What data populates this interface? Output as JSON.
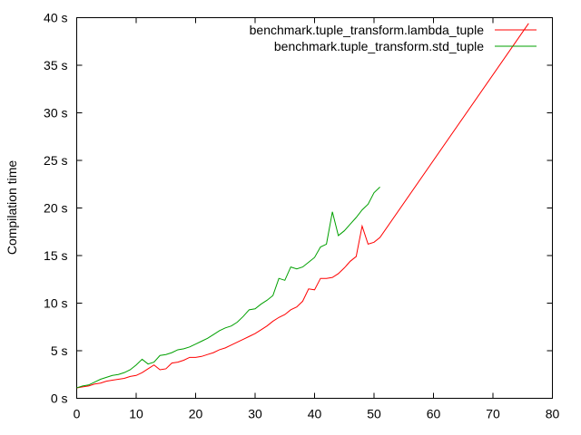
{
  "chart_data": {
    "type": "line",
    "title": "",
    "xlabel": "",
    "ylabel": "Compilation time",
    "xlim": [
      0,
      80
    ],
    "ylim": [
      0,
      40
    ],
    "x_ticks": [
      "0",
      "10",
      "20",
      "30",
      "40",
      "50",
      "60",
      "70",
      "80"
    ],
    "y_ticks": [
      "0 s",
      "5 s",
      "10 s",
      "15 s",
      "20 s",
      "25 s",
      "30 s",
      "35 s",
      "40 s"
    ],
    "grid": false,
    "legend_position": "top-right",
    "series": [
      {
        "name": "benchmark.tuple_transform.lambda_tuple",
        "color": "#ff0000",
        "points": [
          [
            0,
            1.1
          ],
          [
            1,
            1.2
          ],
          [
            2,
            1.3
          ],
          [
            3,
            1.5
          ],
          [
            4,
            1.6
          ],
          [
            5,
            1.8
          ],
          [
            6,
            1.9
          ],
          [
            7,
            2.0
          ],
          [
            8,
            2.1
          ],
          [
            9,
            2.3
          ],
          [
            10,
            2.4
          ],
          [
            11,
            2.7
          ],
          [
            12,
            3.1
          ],
          [
            13,
            3.5
          ],
          [
            14,
            3.0
          ],
          [
            15,
            3.1
          ],
          [
            16,
            3.7
          ],
          [
            17,
            3.8
          ],
          [
            18,
            4.0
          ],
          [
            19,
            4.3
          ],
          [
            20,
            4.3
          ],
          [
            21,
            4.4
          ],
          [
            22,
            4.6
          ],
          [
            23,
            4.8
          ],
          [
            24,
            5.1
          ],
          [
            25,
            5.3
          ],
          [
            26,
            5.6
          ],
          [
            27,
            5.9
          ],
          [
            28,
            6.2
          ],
          [
            29,
            6.5
          ],
          [
            30,
            6.8
          ],
          [
            31,
            7.2
          ],
          [
            32,
            7.6
          ],
          [
            33,
            8.1
          ],
          [
            34,
            8.5
          ],
          [
            35,
            8.8
          ],
          [
            36,
            9.3
          ],
          [
            37,
            9.6
          ],
          [
            38,
            10.2
          ],
          [
            39,
            11.5
          ],
          [
            40,
            11.4
          ],
          [
            41,
            12.6
          ],
          [
            42,
            12.6
          ],
          [
            43,
            12.7
          ],
          [
            44,
            13.1
          ],
          [
            45,
            13.7
          ],
          [
            46,
            14.4
          ],
          [
            47,
            14.9
          ],
          [
            48,
            18.1
          ],
          [
            49,
            16.2
          ],
          [
            50,
            16.4
          ],
          [
            51,
            16.9
          ],
          [
            76,
            39.4
          ]
        ]
      },
      {
        "name": "benchmark.tuple_transform.std_tuple",
        "color": "#00a000",
        "points": [
          [
            0,
            1.1
          ],
          [
            1,
            1.3
          ],
          [
            2,
            1.4
          ],
          [
            3,
            1.7
          ],
          [
            4,
            2.0
          ],
          [
            5,
            2.2
          ],
          [
            6,
            2.4
          ],
          [
            7,
            2.5
          ],
          [
            8,
            2.7
          ],
          [
            9,
            3.0
          ],
          [
            10,
            3.5
          ],
          [
            11,
            4.1
          ],
          [
            12,
            3.6
          ],
          [
            13,
            3.8
          ],
          [
            14,
            4.5
          ],
          [
            15,
            4.6
          ],
          [
            16,
            4.8
          ],
          [
            17,
            5.1
          ],
          [
            18,
            5.2
          ],
          [
            19,
            5.4
          ],
          [
            20,
            5.7
          ],
          [
            21,
            6.0
          ],
          [
            22,
            6.3
          ],
          [
            23,
            6.7
          ],
          [
            24,
            7.1
          ],
          [
            25,
            7.4
          ],
          [
            26,
            7.6
          ],
          [
            27,
            8.0
          ],
          [
            28,
            8.6
          ],
          [
            29,
            9.3
          ],
          [
            30,
            9.4
          ],
          [
            31,
            9.9
          ],
          [
            32,
            10.3
          ],
          [
            33,
            10.8
          ],
          [
            34,
            12.6
          ],
          [
            35,
            12.4
          ],
          [
            36,
            13.8
          ],
          [
            37,
            13.6
          ],
          [
            38,
            13.8
          ],
          [
            39,
            14.3
          ],
          [
            40,
            14.8
          ],
          [
            41,
            15.9
          ],
          [
            42,
            16.2
          ],
          [
            43,
            19.6
          ],
          [
            44,
            17.1
          ],
          [
            45,
            17.6
          ],
          [
            46,
            18.3
          ],
          [
            47,
            19.0
          ],
          [
            48,
            19.8
          ],
          [
            49,
            20.4
          ],
          [
            50,
            21.6
          ],
          [
            51,
            22.2
          ]
        ]
      }
    ]
  }
}
